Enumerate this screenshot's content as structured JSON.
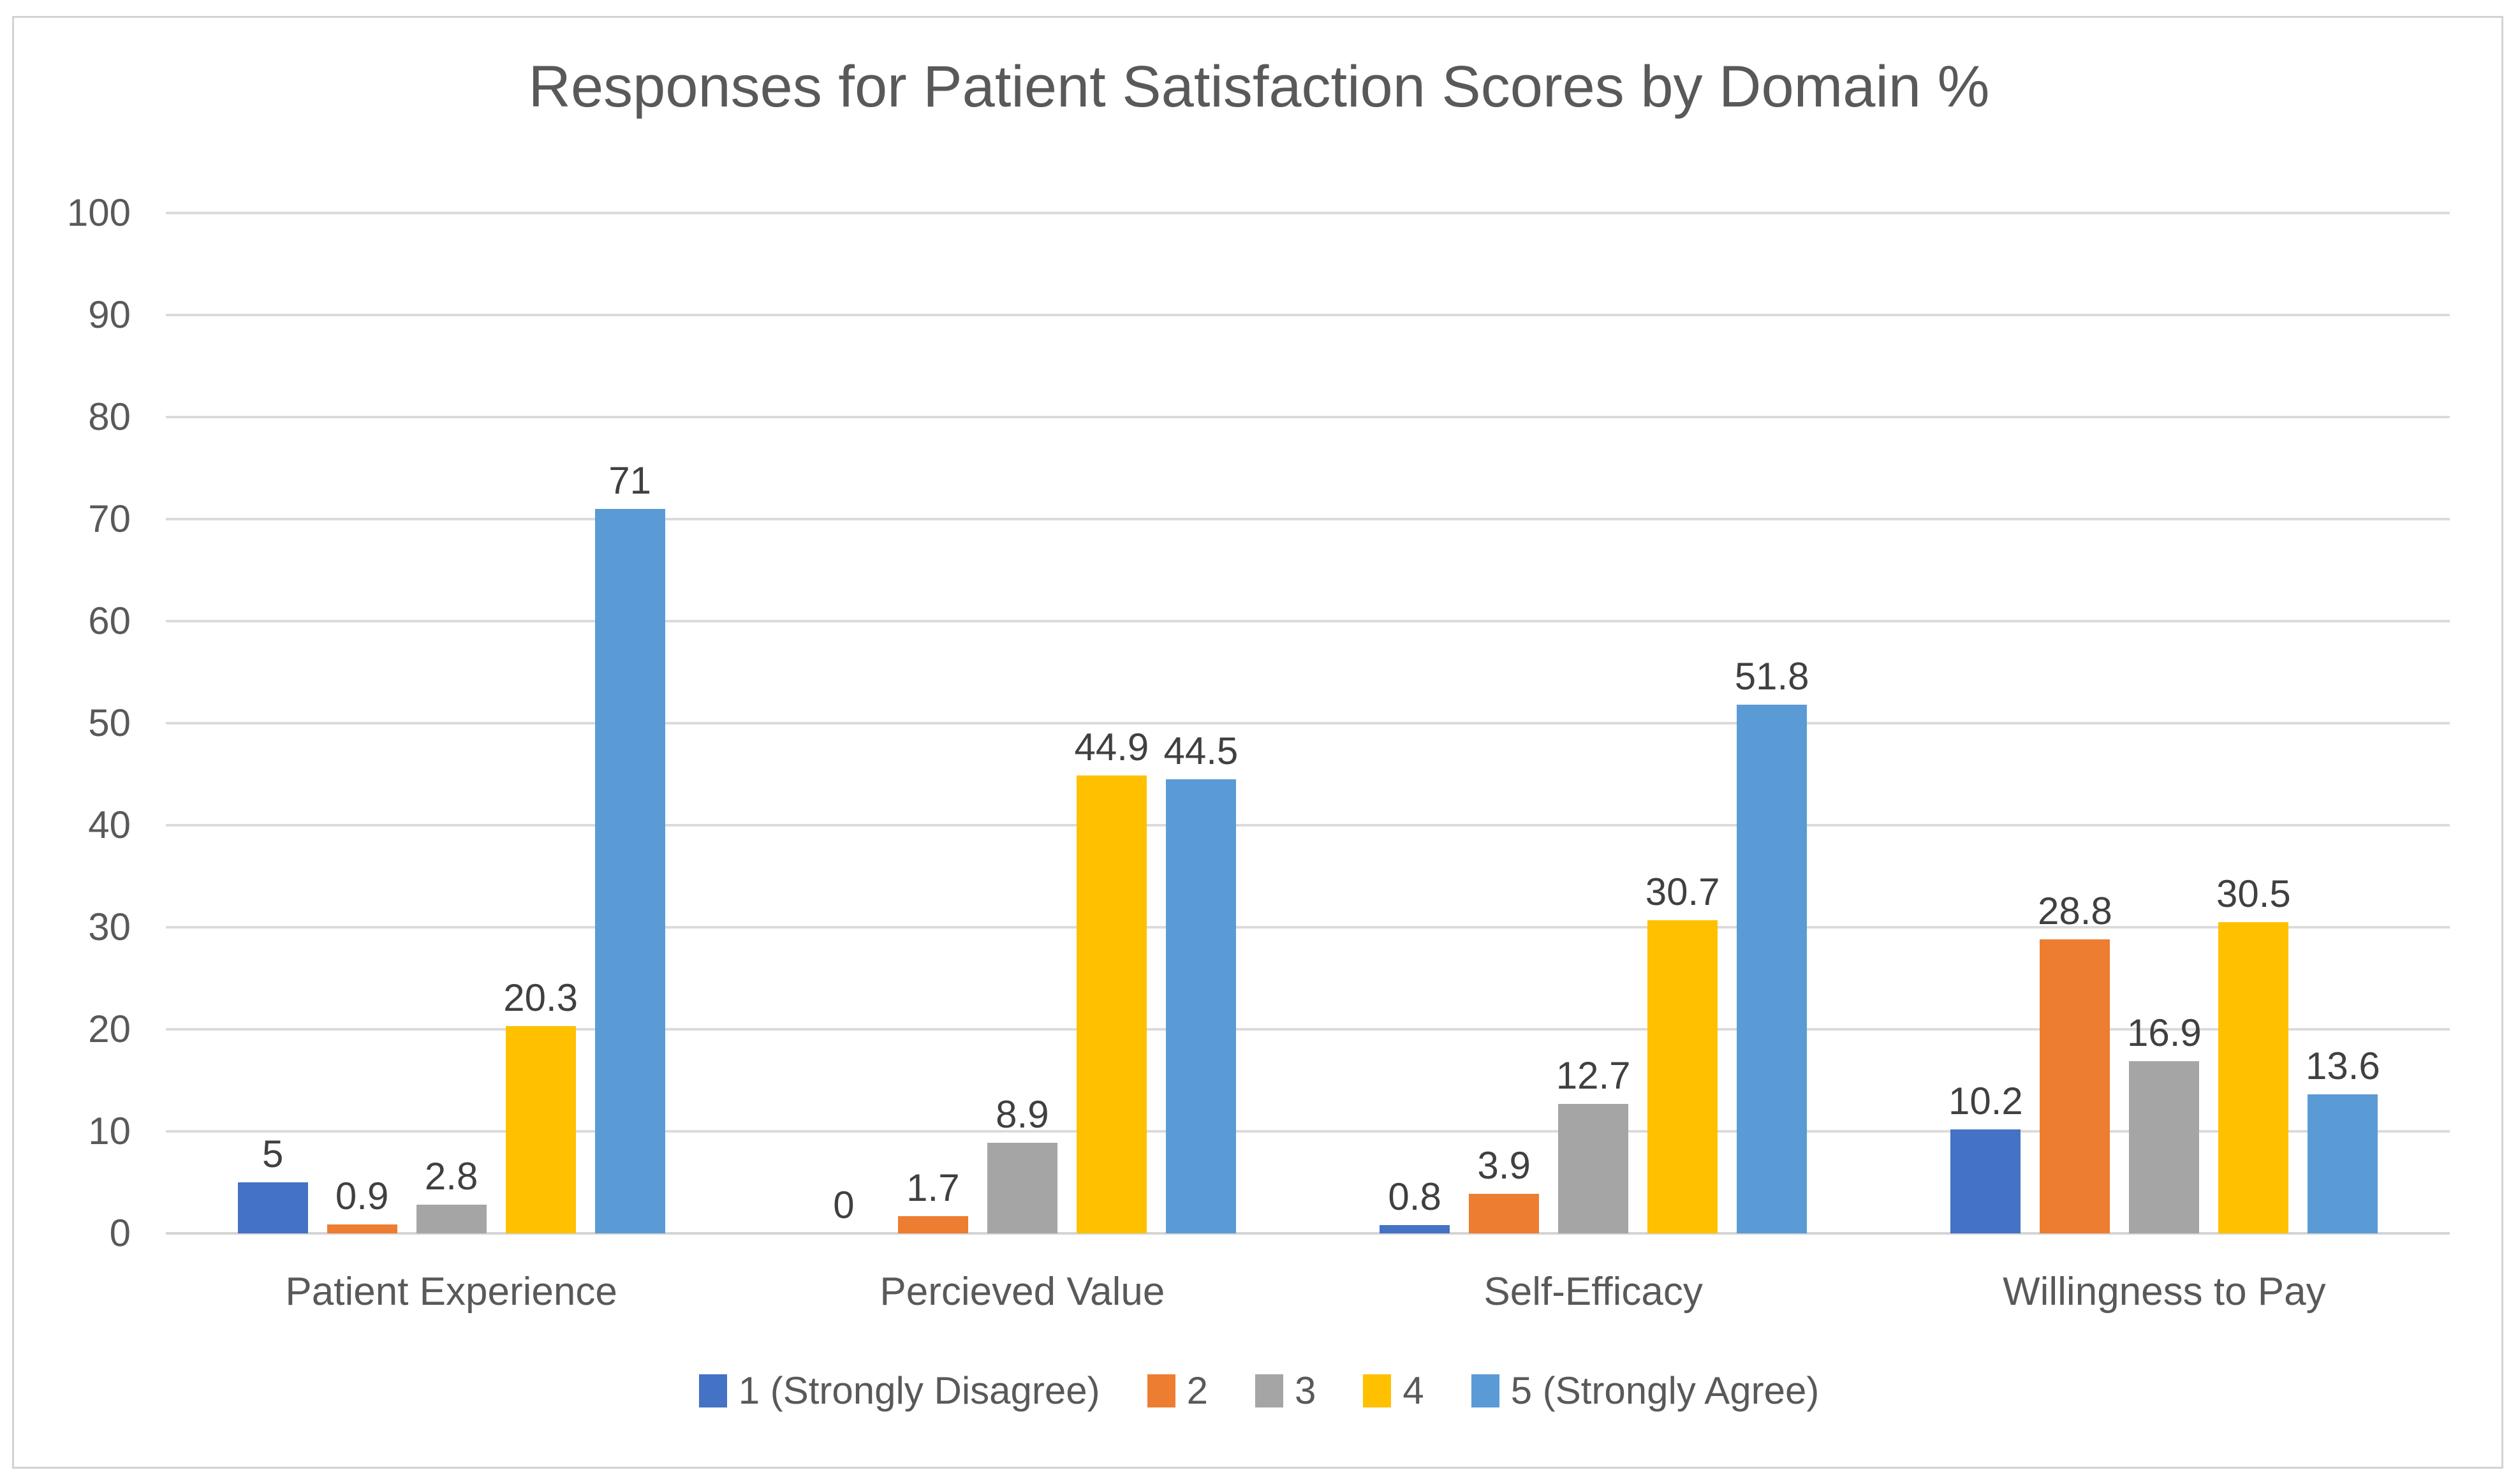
{
  "chart_data": {
    "type": "bar",
    "title": "Responses for Patient Satisfaction Scores by Domain %",
    "categories": [
      "Patient Experience",
      "Percieved Value",
      "Self-Efficacy",
      "Willingness to Pay"
    ],
    "series": [
      {
        "name": "1 (Strongly Disagree)",
        "color": "#4472C4",
        "values": [
          5,
          0,
          0.8,
          10.2
        ]
      },
      {
        "name": "2",
        "color": "#ED7D31",
        "values": [
          0.9,
          1.7,
          3.9,
          28.8
        ]
      },
      {
        "name": "3",
        "color": "#A5A5A5",
        "values": [
          2.8,
          8.9,
          12.7,
          16.9
        ]
      },
      {
        "name": "4",
        "color": "#FFC000",
        "values": [
          20.3,
          44.9,
          30.7,
          30.5
        ]
      },
      {
        "name": "5 (Strongly Agree)",
        "color": "#5B9BD5",
        "values": [
          71,
          44.5,
          51.8,
          13.6
        ]
      }
    ],
    "xlabel": "",
    "ylabel": "",
    "ylim": [
      0,
      100
    ],
    "ytick_step": 10,
    "ytick_labels": [
      "0",
      "10",
      "20",
      "30",
      "40",
      "50",
      "60",
      "70",
      "80",
      "90",
      "100"
    ],
    "grid": true,
    "value_labels_shown": true,
    "legend_position": "bottom",
    "colors": {
      "title_text": "#595959",
      "axis_text": "#595959",
      "data_label_text": "#404040",
      "gridline": "#DBDBDB",
      "frame_border": "#D2D2D2",
      "background": "#FFFFFF"
    }
  }
}
